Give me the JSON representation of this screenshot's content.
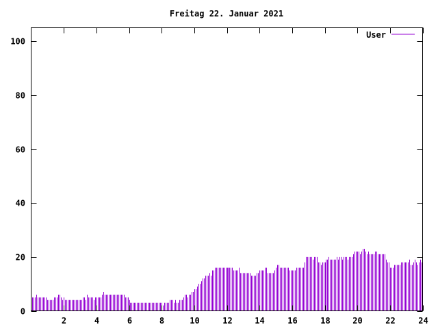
{
  "chart_data": {
    "type": "bar",
    "style": "impulses",
    "title": "Freitag 22. Januar 2021",
    "xlabel": "",
    "ylabel": "",
    "xlim": [
      0,
      24
    ],
    "ylim": [
      0,
      105
    ],
    "xticks": [
      2,
      4,
      6,
      8,
      10,
      12,
      14,
      16,
      18,
      20,
      22,
      24
    ],
    "yticks": [
      0,
      20,
      40,
      60,
      80,
      100
    ],
    "grid": false,
    "legend_position": "top-right",
    "sample_interval_minutes": 5,
    "series": [
      {
        "name": "User",
        "color": "#9400d3",
        "values": [
          5,
          5,
          5,
          6,
          5,
          5,
          5,
          5,
          5,
          5,
          5,
          4,
          4,
          4,
          4,
          4,
          5,
          5,
          5,
          6,
          6,
          5,
          4,
          5,
          4,
          4,
          4,
          4,
          4,
          4,
          4,
          4,
          4,
          4,
          4,
          4,
          4,
          5,
          5,
          4,
          6,
          5,
          5,
          5,
          5,
          4,
          5,
          5,
          5,
          5,
          5,
          6,
          7,
          6,
          6,
          6,
          6,
          6,
          6,
          6,
          6,
          6,
          6,
          6,
          6,
          6,
          6,
          6,
          5,
          5,
          5,
          4,
          3,
          3,
          3,
          3,
          3,
          3,
          3,
          3,
          3,
          3,
          3,
          3,
          3,
          3,
          3,
          3,
          3,
          3,
          3,
          3,
          3,
          3,
          3,
          3,
          2,
          3,
          3,
          3,
          3,
          4,
          4,
          4,
          3,
          4,
          3,
          3,
          4,
          4,
          4,
          5,
          6,
          6,
          5,
          6,
          6,
          7,
          7,
          8,
          8,
          9,
          10,
          10,
          11,
          12,
          12,
          13,
          13,
          13,
          14,
          13,
          15,
          15,
          16,
          16,
          16,
          16,
          16,
          16,
          16,
          16,
          16,
          16,
          16,
          16,
          16,
          16,
          15,
          15,
          15,
          15,
          16,
          14,
          14,
          14,
          14,
          14,
          14,
          14,
          14,
          13,
          13,
          13,
          13,
          14,
          14,
          15,
          15,
          15,
          15,
          16,
          16,
          14,
          14,
          14,
          14,
          14,
          15,
          16,
          17,
          17,
          16,
          16,
          16,
          16,
          16,
          16,
          16,
          15,
          15,
          15,
          15,
          15,
          16,
          16,
          16,
          16,
          16,
          16,
          18,
          20,
          20,
          20,
          20,
          20,
          19,
          20,
          20,
          20,
          18,
          18,
          17,
          18,
          18,
          18,
          19,
          19,
          20,
          19,
          19,
          19,
          19,
          19,
          20,
          19,
          20,
          20,
          19,
          20,
          20,
          20,
          19,
          20,
          20,
          20,
          21,
          22,
          22,
          22,
          22,
          21,
          22,
          23,
          23,
          22,
          21,
          22,
          21,
          21,
          21,
          21,
          22,
          22,
          21,
          21,
          21,
          21,
          21,
          21,
          19,
          18,
          18,
          16,
          16,
          16,
          17,
          17,
          17,
          17,
          17,
          18,
          18,
          18,
          18,
          18,
          18,
          19,
          17,
          17,
          18,
          19,
          18,
          17,
          18,
          19,
          18,
          17
        ]
      }
    ]
  }
}
